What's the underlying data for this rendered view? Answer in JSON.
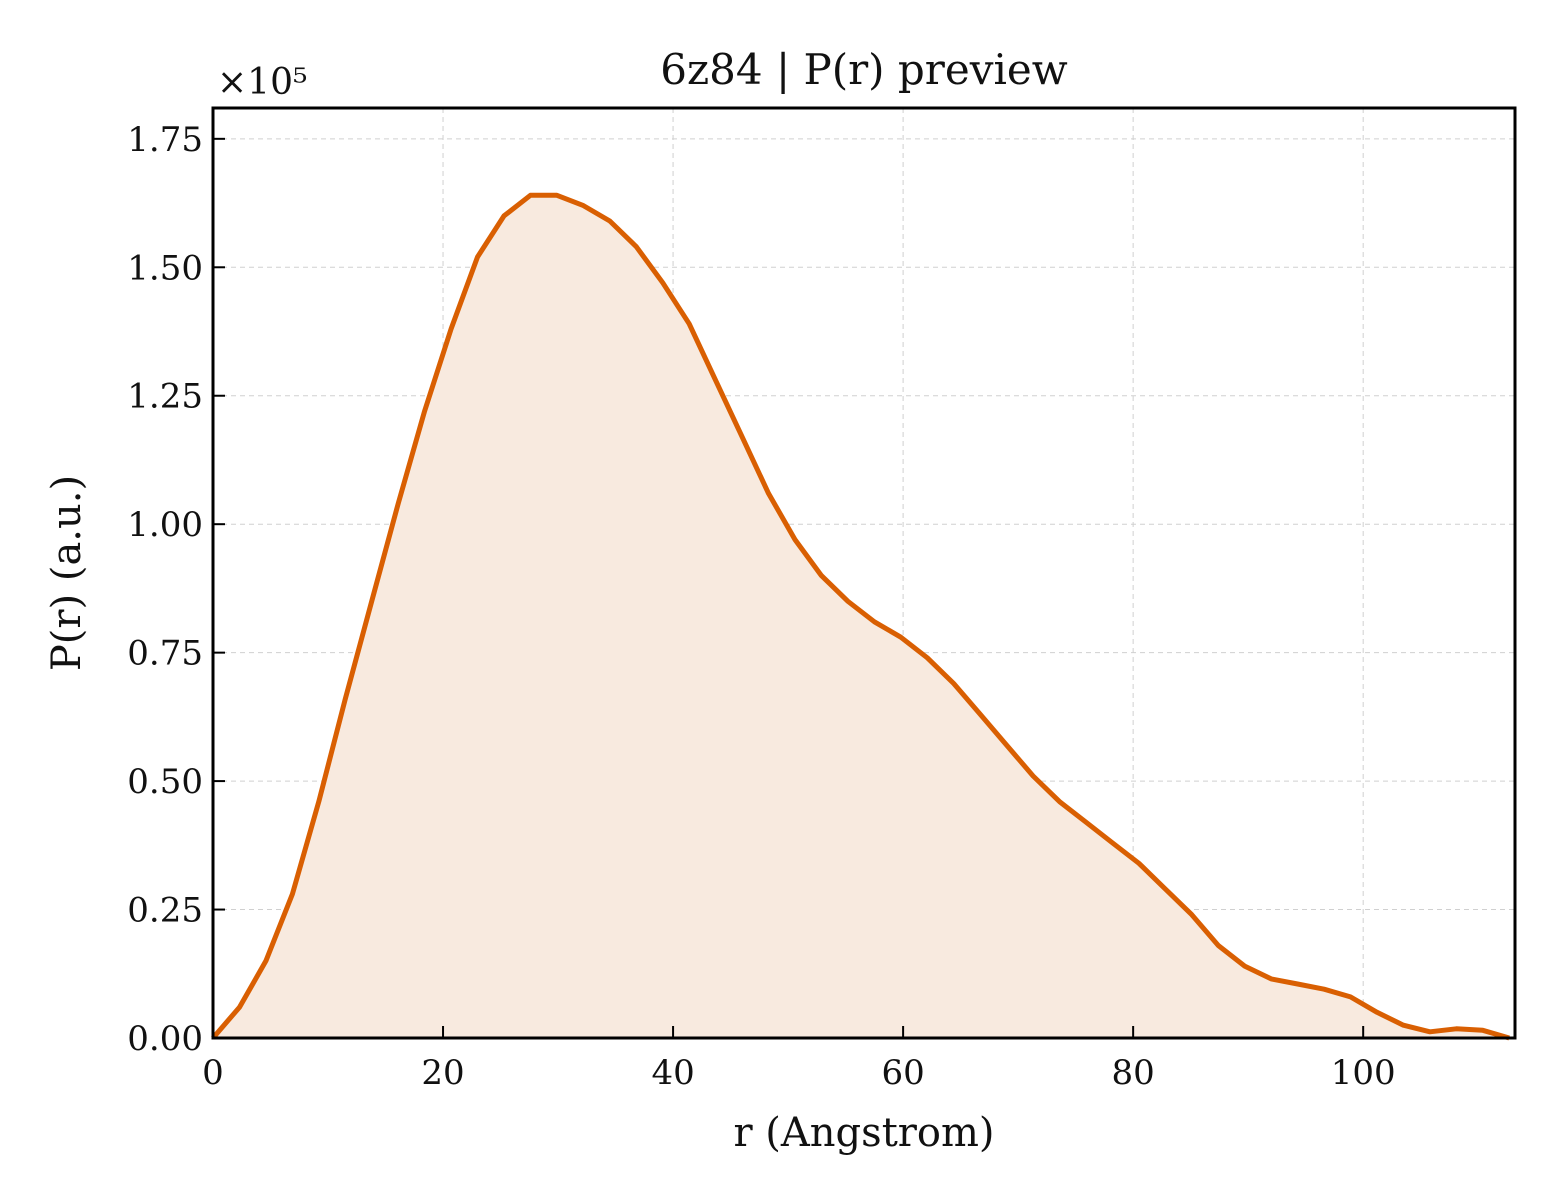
{
  "chart_data": {
    "type": "area",
    "title": "6z84 | P(r) preview",
    "xlabel": "r (Angstrom)",
    "ylabel": "P(r) (a.u.)",
    "y_multiplier_label": "×10⁵",
    "y_multiplier": 100000,
    "xlim": [
      0,
      113.2
    ],
    "ylim": [
      0,
      1.81
    ],
    "x_ticks": [
      0,
      20,
      40,
      60,
      80,
      100
    ],
    "x_tick_labels": [
      "0",
      "20",
      "40",
      "60",
      "80",
      "100"
    ],
    "y_ticks": [
      0,
      0.25,
      0.5,
      0.75,
      1.0,
      1.25,
      1.5,
      1.75
    ],
    "y_tick_labels": [
      "0.00",
      "0.25",
      "0.50",
      "0.75",
      "1.00",
      "1.25",
      "1.50",
      "1.75"
    ],
    "grid": true,
    "line_color": "#d95f02",
    "fill_color": "#f8eadf",
    "series": [
      {
        "x": [
          0,
          2.3,
          4.6,
          6.9,
          9.2,
          11.5,
          13.8,
          16.1,
          18.4,
          20.7,
          23.0,
          25.3,
          27.6,
          29.9,
          32.2,
          34.5,
          36.8,
          39.1,
          41.4,
          43.7,
          46.0,
          48.3,
          50.6,
          52.9,
          55.2,
          57.5,
          59.8,
          62.1,
          64.4,
          66.7,
          69.0,
          71.3,
          73.6,
          75.9,
          78.2,
          80.5,
          82.8,
          85.1,
          87.4,
          89.7,
          92.0,
          94.3,
          96.6,
          98.9,
          101.2,
          103.5,
          105.8,
          108.1,
          110.4,
          112.7
        ],
        "values": [
          0.0,
          0.06,
          0.15,
          0.28,
          0.46,
          0.66,
          0.85,
          1.04,
          1.22,
          1.38,
          1.52,
          1.6,
          1.64,
          1.64,
          1.62,
          1.59,
          1.54,
          1.47,
          1.39,
          1.28,
          1.17,
          1.06,
          0.97,
          0.9,
          0.85,
          0.81,
          0.78,
          0.74,
          0.69,
          0.63,
          0.57,
          0.51,
          0.46,
          0.42,
          0.38,
          0.34,
          0.29,
          0.24,
          0.18,
          0.14,
          0.115,
          0.105,
          0.095,
          0.08,
          0.05,
          0.025,
          0.012,
          0.018,
          0.015,
          0.0
        ]
      }
    ]
  }
}
